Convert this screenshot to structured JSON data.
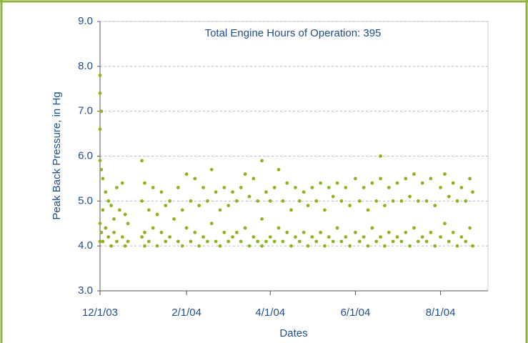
{
  "chart_data": {
    "type": "scatter",
    "annotation": "Total Engine Hours of Operation: 395",
    "x_label": "Dates",
    "y_label": "Peak Back Pressure, in Hg",
    "color": "#8db41e",
    "grid": true,
    "xlim": [
      "2003-12-01",
      "2004-09-04"
    ],
    "xticks": [
      {
        "value": "2003-12-01",
        "label": "12/1/03"
      },
      {
        "value": "2004-02-01",
        "label": "2/1/04"
      },
      {
        "value": "2004-04-01",
        "label": "4/1/04"
      },
      {
        "value": "2004-06-01",
        "label": "6/1/04"
      },
      {
        "value": "2004-08-01",
        "label": "8/1/04"
      }
    ],
    "ylim": [
      3,
      9
    ],
    "yticks": [
      {
        "value": 3,
        "label": "3.0"
      },
      {
        "value": 4,
        "label": "4.0"
      },
      {
        "value": 5,
        "label": "5.0"
      },
      {
        "value": 6,
        "label": "6.0"
      },
      {
        "value": 7,
        "label": "7.0"
      },
      {
        "value": 8,
        "label": "8.0"
      },
      {
        "value": 9,
        "label": "9.0"
      }
    ],
    "x": [
      "2003-12-01",
      "2003-12-01",
      "2003-12-01",
      "2003-12-01",
      "2003-12-01",
      "2003-12-01",
      "2003-12-02",
      "2003-12-02",
      "2003-12-02",
      "2003-12-03",
      "2003-12-03",
      "2003-12-03",
      "2003-12-05",
      "2003-12-05",
      "2003-12-07",
      "2003-12-07",
      "2003-12-09",
      "2003-12-09",
      "2003-12-11",
      "2003-12-11",
      "2003-12-13",
      "2003-12-13",
      "2003-12-15",
      "2003-12-17",
      "2003-12-17",
      "2003-12-19",
      "2003-12-19",
      "2003-12-21",
      "2003-12-21",
      "2003-12-31",
      "2003-12-31",
      "2003-12-31",
      "2004-01-02",
      "2004-01-02",
      "2004-01-02",
      "2004-01-05",
      "2004-01-05",
      "2004-01-08",
      "2004-01-08",
      "2004-01-11",
      "2004-01-11",
      "2004-01-14",
      "2004-01-14",
      "2004-01-17",
      "2004-01-17",
      "2004-01-20",
      "2004-01-20",
      "2004-01-23",
      "2004-01-26",
      "2004-01-26",
      "2004-01-29",
      "2004-01-29",
      "2004-02-01",
      "2004-02-01",
      "2004-02-04",
      "2004-02-04",
      "2004-02-07",
      "2004-02-07",
      "2004-02-10",
      "2004-02-10",
      "2004-02-13",
      "2004-02-13",
      "2004-02-16",
      "2004-02-16",
      "2004-02-19",
      "2004-02-19",
      "2004-02-22",
      "2004-02-22",
      "2004-02-25",
      "2004-02-25",
      "2004-02-28",
      "2004-02-28",
      "2004-03-02",
      "2004-03-02",
      "2004-03-05",
      "2004-03-05",
      "2004-03-08",
      "2004-03-08",
      "2004-03-11",
      "2004-03-11",
      "2004-03-14",
      "2004-03-14",
      "2004-03-17",
      "2004-03-17",
      "2004-03-20",
      "2004-03-20",
      "2004-03-23",
      "2004-03-23",
      "2004-03-26",
      "2004-03-26",
      "2004-03-26",
      "2004-03-29",
      "2004-03-29",
      "2004-04-01",
      "2004-04-01",
      "2004-04-04",
      "2004-04-04",
      "2004-04-07",
      "2004-04-07",
      "2004-04-10",
      "2004-04-10",
      "2004-04-13",
      "2004-04-13",
      "2004-04-16",
      "2004-04-16",
      "2004-04-19",
      "2004-04-19",
      "2004-04-22",
      "2004-04-22",
      "2004-04-25",
      "2004-04-25",
      "2004-04-28",
      "2004-04-28",
      "2004-05-01",
      "2004-05-01",
      "2004-05-04",
      "2004-05-04",
      "2004-05-07",
      "2004-05-07",
      "2004-05-10",
      "2004-05-10",
      "2004-05-13",
      "2004-05-13",
      "2004-05-16",
      "2004-05-16",
      "2004-05-19",
      "2004-05-19",
      "2004-05-22",
      "2004-05-22",
      "2004-05-25",
      "2004-05-25",
      "2004-05-28",
      "2004-05-28",
      "2004-06-01",
      "2004-06-01",
      "2004-06-04",
      "2004-06-04",
      "2004-06-07",
      "2004-06-07",
      "2004-06-10",
      "2004-06-10",
      "2004-06-13",
      "2004-06-13",
      "2004-06-16",
      "2004-06-16",
      "2004-06-19",
      "2004-06-19",
      "2004-06-19",
      "2004-06-22",
      "2004-06-22",
      "2004-06-25",
      "2004-06-25",
      "2004-06-28",
      "2004-06-28",
      "2004-07-01",
      "2004-07-01",
      "2004-07-04",
      "2004-07-04",
      "2004-07-07",
      "2004-07-07",
      "2004-07-10",
      "2004-07-10",
      "2004-07-13",
      "2004-07-13",
      "2004-07-16",
      "2004-07-16",
      "2004-07-19",
      "2004-07-19",
      "2004-07-22",
      "2004-07-22",
      "2004-07-25",
      "2004-07-25",
      "2004-07-28",
      "2004-07-28",
      "2004-08-01",
      "2004-08-01",
      "2004-08-04",
      "2004-08-04",
      "2004-08-07",
      "2004-08-07",
      "2004-08-10",
      "2004-08-10",
      "2004-08-13",
      "2004-08-13",
      "2004-08-16",
      "2004-08-16",
      "2004-08-19",
      "2004-08-19",
      "2004-08-22",
      "2004-08-22",
      "2004-08-24",
      "2004-08-24"
    ],
    "values": [
      7.8,
      7.4,
      6.6,
      5.9,
      4.5,
      4.1,
      7.0,
      5.7,
      4.3,
      5.5,
      4.8,
      4.1,
      5.2,
      4.4,
      5.0,
      4.2,
      4.9,
      4.0,
      4.6,
      4.3,
      5.3,
      4.1,
      4.8,
      5.4,
      4.2,
      4.7,
      4.0,
      4.5,
      4.1,
      5.9,
      5.0,
      4.2,
      5.4,
      4.3,
      4.0,
      4.8,
      4.1,
      5.3,
      4.4,
      4.7,
      4.0,
      5.2,
      4.3,
      4.9,
      4.1,
      5.0,
      4.2,
      4.6,
      5.3,
      4.1,
      4.8,
      4.0,
      5.6,
      4.4,
      5.0,
      4.1,
      5.5,
      4.3,
      4.9,
      4.0,
      5.3,
      4.2,
      5.0,
      4.1,
      5.7,
      4.5,
      5.2,
      4.1,
      4.8,
      4.0,
      5.3,
      4.3,
      4.9,
      4.1,
      5.2,
      4.2,
      5.0,
      4.3,
      5.3,
      4.1,
      5.6,
      4.4,
      5.1,
      4.0,
      5.5,
      4.2,
      5.0,
      4.1,
      5.9,
      4.6,
      4.0,
      5.2,
      4.1,
      5.0,
      4.2,
      5.3,
      4.1,
      5.7,
      4.4,
      5.0,
      4.1,
      5.4,
      4.3,
      4.8,
      4.0,
      5.3,
      4.2,
      5.0,
      4.1,
      5.2,
      4.3,
      4.9,
      4.0,
      5.3,
      4.2,
      5.0,
      4.1,
      5.4,
      4.3,
      4.8,
      4.0,
      5.3,
      4.2,
      5.1,
      4.1,
      5.4,
      4.4,
      5.0,
      4.1,
      5.3,
      4.2,
      4.9,
      4.0,
      5.5,
      4.3,
      5.0,
      4.1,
      5.3,
      4.2,
      4.8,
      4.0,
      5.4,
      4.4,
      5.0,
      4.1,
      6.0,
      5.5,
      4.2,
      4.9,
      4.0,
      5.3,
      4.3,
      5.0,
      4.1,
      5.4,
      4.2,
      5.0,
      4.1,
      5.5,
      4.3,
      5.1,
      4.0,
      5.6,
      4.4,
      5.0,
      4.1,
      5.4,
      4.2,
      5.0,
      4.1,
      5.5,
      4.3,
      4.9,
      4.0,
      5.3,
      4.2,
      5.6,
      4.5,
      5.1,
      4.1,
      5.4,
      4.3,
      5.0,
      4.0,
      5.3,
      4.2,
      5.0,
      4.1,
      5.5,
      4.4,
      5.2,
      4.0
    ]
  }
}
